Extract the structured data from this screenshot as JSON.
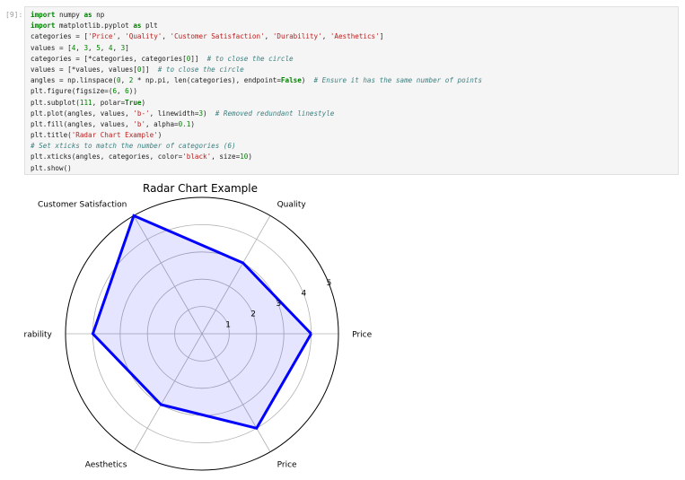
{
  "cell": {
    "prompt": "[9]:",
    "lines": [
      [
        {
          "t": "import",
          "c": "kw"
        },
        {
          "t": " numpy "
        },
        {
          "t": "as",
          "c": "kw"
        },
        {
          "t": " np"
        }
      ],
      [
        {
          "t": "import",
          "c": "kw"
        },
        {
          "t": " matplotlib.pyplot "
        },
        {
          "t": "as",
          "c": "kw"
        },
        {
          "t": " plt"
        }
      ],
      [
        {
          "t": "categories = ["
        },
        {
          "t": "'Price'",
          "c": "str"
        },
        {
          "t": ", "
        },
        {
          "t": "'Quality'",
          "c": "str"
        },
        {
          "t": ", "
        },
        {
          "t": "'Customer Satisfaction'",
          "c": "str"
        },
        {
          "t": ", "
        },
        {
          "t": "'Durability'",
          "c": "str"
        },
        {
          "t": ", "
        },
        {
          "t": "'Aesthetics'",
          "c": "str"
        },
        {
          "t": "]"
        }
      ],
      [
        {
          "t": "values = ["
        },
        {
          "t": "4",
          "c": "num"
        },
        {
          "t": ", "
        },
        {
          "t": "3",
          "c": "num"
        },
        {
          "t": ", "
        },
        {
          "t": "5",
          "c": "num"
        },
        {
          "t": ", "
        },
        {
          "t": "4",
          "c": "num"
        },
        {
          "t": ", "
        },
        {
          "t": "3",
          "c": "num"
        },
        {
          "t": "]"
        }
      ],
      [
        {
          "t": "categories = [*categories, categories["
        },
        {
          "t": "0",
          "c": "num"
        },
        {
          "t": "]]  "
        },
        {
          "t": "# to close the circle",
          "c": "cm"
        }
      ],
      [
        {
          "t": "values = [*values, values["
        },
        {
          "t": "0",
          "c": "num"
        },
        {
          "t": "]]  "
        },
        {
          "t": "# to close the circle",
          "c": "cm"
        }
      ],
      [
        {
          "t": "angles = np.linspace("
        },
        {
          "t": "0",
          "c": "num"
        },
        {
          "t": ", "
        },
        {
          "t": "2",
          "c": "num"
        },
        {
          "t": " * np.pi, len(categories), endpoint="
        },
        {
          "t": "False",
          "c": "kw"
        },
        {
          "t": ")  "
        },
        {
          "t": "# Ensure it has the same number of points",
          "c": "cm"
        }
      ],
      [
        {
          "t": "plt.figure(figsize=("
        },
        {
          "t": "6",
          "c": "num"
        },
        {
          "t": ", "
        },
        {
          "t": "6",
          "c": "num"
        },
        {
          "t": "))"
        }
      ],
      [
        {
          "t": "plt.subplot("
        },
        {
          "t": "111",
          "c": "num"
        },
        {
          "t": ", polar="
        },
        {
          "t": "True",
          "c": "kw"
        },
        {
          "t": ")"
        }
      ],
      [
        {
          "t": "plt.plot(angles, values, "
        },
        {
          "t": "'b-'",
          "c": "str"
        },
        {
          "t": ", linewidth="
        },
        {
          "t": "3",
          "c": "num"
        },
        {
          "t": ")  "
        },
        {
          "t": "# Removed redundant linestyle",
          "c": "cm"
        }
      ],
      [
        {
          "t": "plt.fill(angles, values, "
        },
        {
          "t": "'b'",
          "c": "str"
        },
        {
          "t": ", alpha="
        },
        {
          "t": "0.1",
          "c": "num"
        },
        {
          "t": ")"
        }
      ],
      [
        {
          "t": "plt.title("
        },
        {
          "t": "'Radar Chart Example'",
          "c": "str"
        },
        {
          "t": ")"
        }
      ],
      [
        {
          "t": "# Set xticks to match the number of categories (6)",
          "c": "cm"
        }
      ],
      [
        {
          "t": "plt.xticks(angles, categories, color="
        },
        {
          "t": "'black'",
          "c": "str"
        },
        {
          "t": ", size="
        },
        {
          "t": "10",
          "c": "num"
        },
        {
          "t": ")"
        }
      ],
      [
        {
          "t": "plt.show()"
        }
      ]
    ]
  },
  "chart_data": {
    "type": "radar",
    "title": "Radar Chart Example",
    "categories": [
      "Price",
      "Quality",
      "Customer Satisfaction",
      "Durability",
      "Aesthetics",
      "Price"
    ],
    "angles_deg": [
      0,
      60,
      120,
      180,
      240,
      300
    ],
    "values": [
      4,
      3,
      5,
      4,
      3,
      4
    ],
    "rlim": [
      0,
      5
    ],
    "rticks": [
      1,
      2,
      3,
      4,
      5
    ],
    "line_color": "#0000ff",
    "fill_color": "#0000ff",
    "fill_alpha": 0.1,
    "grid": true
  }
}
